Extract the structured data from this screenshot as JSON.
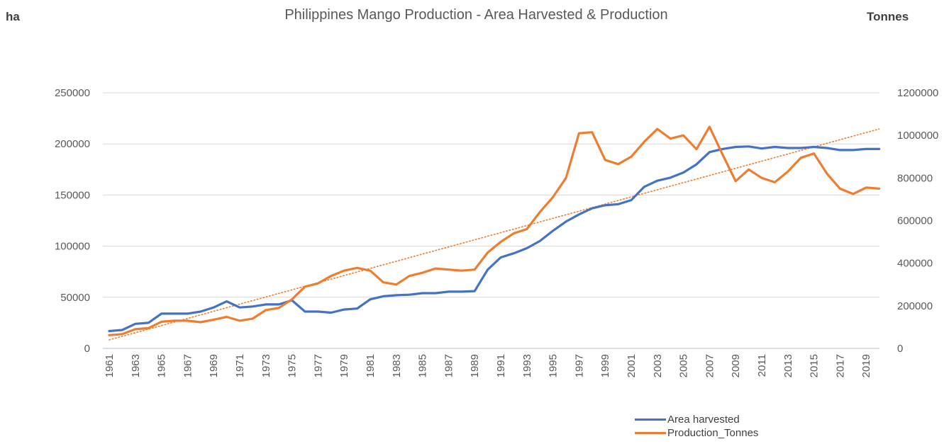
{
  "unit_left": "ha",
  "unit_right": "Tonnes",
  "colors": {
    "area": "#4472C4",
    "production": "#ED7D31",
    "grid": "#d9d9d9",
    "axis_text": "#595959"
  },
  "chart_data": {
    "type": "line",
    "title": "Philippines Mango Production - Area Harvested & Production",
    "x": [
      1961,
      1962,
      1963,
      1964,
      1965,
      1966,
      1967,
      1968,
      1969,
      1970,
      1971,
      1972,
      1973,
      1974,
      1975,
      1976,
      1977,
      1978,
      1979,
      1980,
      1981,
      1982,
      1983,
      1984,
      1985,
      1986,
      1987,
      1988,
      1989,
      1990,
      1991,
      1992,
      1993,
      1994,
      1995,
      1996,
      1997,
      1998,
      1999,
      2000,
      2001,
      2002,
      2003,
      2004,
      2005,
      2006,
      2007,
      2008,
      2009,
      2010,
      2011,
      2012,
      2013,
      2014,
      2015,
      2016,
      2017,
      2018,
      2019,
      2020
    ],
    "x_tick_labels": [
      "1961",
      "1963",
      "1965",
      "1967",
      "1969",
      "1971",
      "1973",
      "1975",
      "1977",
      "1979",
      "1981",
      "1983",
      "1985",
      "1987",
      "1989",
      "1991",
      "1993",
      "1995",
      "1997",
      "1999",
      "2001",
      "2003",
      "2005",
      "2007",
      "2009",
      "2011",
      "2013",
      "2015",
      "2017",
      "2019"
    ],
    "y_left": {
      "ylim": [
        0,
        250000
      ],
      "ticks": [
        "0",
        "50000",
        "100000",
        "150000",
        "200000",
        "250000"
      ]
    },
    "y_right": {
      "ylim": [
        0,
        1200000
      ],
      "ticks": [
        "0",
        "200000",
        "400000",
        "600000",
        "800000",
        "1000000",
        "1200000"
      ]
    },
    "grid": true,
    "legend_position": "bottom-right",
    "series": [
      {
        "name": "Area harvested",
        "axis": "left",
        "values": [
          17000,
          18000,
          24000,
          25000,
          34000,
          34000,
          34000,
          36000,
          40000,
          46000,
          40000,
          41000,
          43000,
          43000,
          47000,
          36000,
          36000,
          35000,
          38000,
          39000,
          48000,
          51000,
          52000,
          52500,
          54000,
          54000,
          55500,
          55500,
          56000,
          77000,
          89000,
          93000,
          98000,
          105000,
          115000,
          124000,
          131000,
          137000,
          140000,
          141000,
          145000,
          158000,
          164000,
          167000,
          172000,
          180000,
          192000,
          195000,
          197000,
          197500,
          195500,
          197000,
          196000,
          196000,
          197000,
          196000,
          194000,
          194000,
          195000,
          195000
        ]
      },
      {
        "name": "Production_Tonnes",
        "axis": "right",
        "values": [
          62000,
          67000,
          90000,
          95000,
          125000,
          130000,
          130000,
          123000,
          135000,
          148000,
          130000,
          140000,
          180000,
          190000,
          230000,
          290000,
          305000,
          340000,
          365000,
          378000,
          365000,
          310000,
          300000,
          340000,
          355000,
          375000,
          370000,
          365000,
          370000,
          450000,
          500000,
          540000,
          560000,
          640000,
          710000,
          800000,
          1010000,
          1015000,
          885000,
          865000,
          900000,
          970000,
          1030000,
          985000,
          1000000,
          935000,
          1040000,
          910000,
          785000,
          840000,
          800000,
          780000,
          830000,
          895000,
          915000,
          820000,
          750000,
          725000,
          755000,
          750000
        ]
      }
    ],
    "trendline": {
      "series": "Production_Tonnes",
      "style": "dotted",
      "x": [
        1961,
        2020
      ],
      "y": [
        40000,
        1030000
      ]
    }
  }
}
